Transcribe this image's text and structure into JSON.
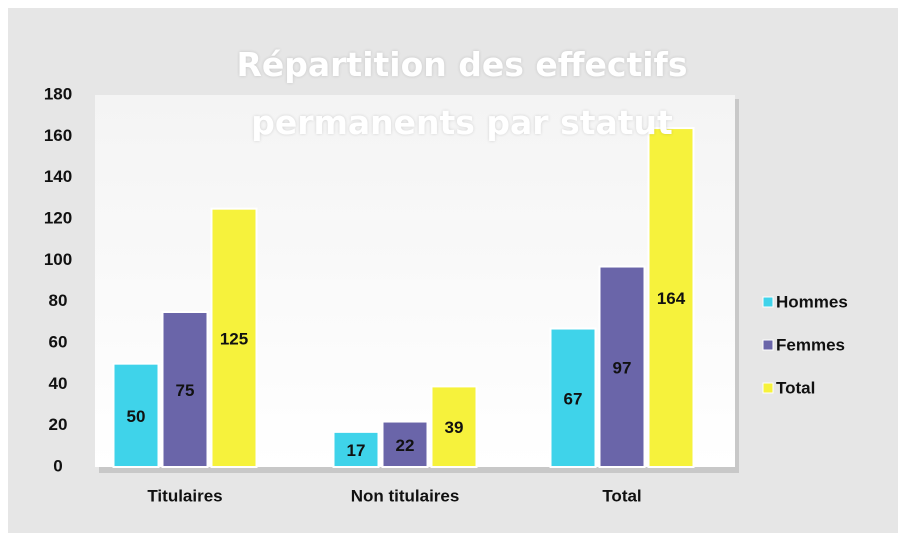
{
  "chart_data": {
    "type": "bar",
    "title": "Répartition des effectifs permanents par statut",
    "categories": [
      "Titulaires",
      "Non titulaires",
      "Total"
    ],
    "series": [
      {
        "name": "Hommes",
        "color": "#3fd3ea",
        "values": [
          50,
          17,
          67
        ]
      },
      {
        "name": "Femmes",
        "color": "#6a65a9",
        "values": [
          75,
          22,
          97
        ]
      },
      {
        "name": "Total",
        "color": "#f6f23c",
        "values": [
          125,
          39,
          164
        ]
      }
    ],
    "ylim": [
      0,
      180
    ],
    "yticks": [
      0,
      20,
      40,
      60,
      80,
      100,
      120,
      140,
      160,
      180
    ],
    "grid": false,
    "legend": "right"
  }
}
